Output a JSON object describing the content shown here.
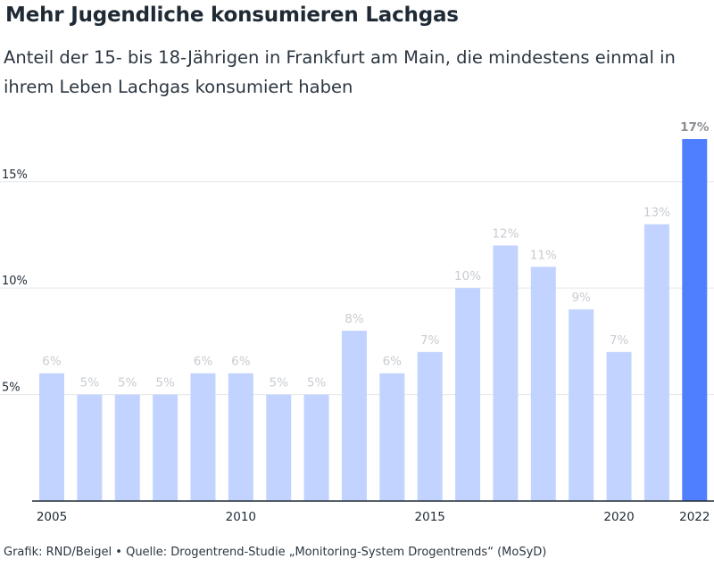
{
  "title": "Mehr Jugendliche konsumieren Lachgas",
  "subtitle": "Anteil der 15- bis 18-Jährigen in Frankfurt am Main, die mindestens einmal in ihrem Leben Lachgas konsumiert haben",
  "footer": "Grafik: RND/Beigel • Quelle: Drogentrend-Studie „Monitoring-System Drogentrends“ (MoSyD)",
  "colors": {
    "bar": "#c2d3ff",
    "highlight": "#4f7fff",
    "label": "#c8ccd1",
    "highlight_label": "#8a8f95",
    "grid": "#e4e7ea",
    "axis": "#1f2a35"
  },
  "chart_data": {
    "type": "bar",
    "title": "Mehr Jugendliche konsumieren Lachgas",
    "subtitle": "Anteil der 15- bis 18-Jährigen in Frankfurt am Main, die mindestens einmal in ihrem Leben Lachgas konsumiert haben",
    "xlabel": "",
    "ylabel": "",
    "categories": [
      2005,
      2006,
      2007,
      2008,
      2009,
      2010,
      2011,
      2012,
      2013,
      2014,
      2015,
      2016,
      2017,
      2018,
      2019,
      2020,
      2021,
      2022
    ],
    "values": [
      6,
      5,
      5,
      5,
      6,
      6,
      5,
      5,
      8,
      6,
      7,
      10,
      12,
      11,
      9,
      7,
      13,
      17
    ],
    "value_labels": [
      "6%",
      "5%",
      "5%",
      "5%",
      "6%",
      "6%",
      "5%",
      "5%",
      "8%",
      "6%",
      "7%",
      "10%",
      "12%",
      "11%",
      "9%",
      "7%",
      "13%",
      "17%"
    ],
    "highlight_index": 17,
    "ylim": [
      0,
      17
    ],
    "y_ticks": [
      5,
      10,
      15
    ],
    "y_tick_labels": [
      "5%",
      "10%",
      "15%"
    ],
    "x_tick_labels": [
      {
        "category": 2005,
        "label": "2005"
      },
      {
        "category": 2010,
        "label": "2010"
      },
      {
        "category": 2015,
        "label": "2015"
      },
      {
        "category": 2020,
        "label": "2020"
      },
      {
        "category": 2022,
        "label": "2022"
      }
    ],
    "grid": true,
    "legend": "none"
  }
}
